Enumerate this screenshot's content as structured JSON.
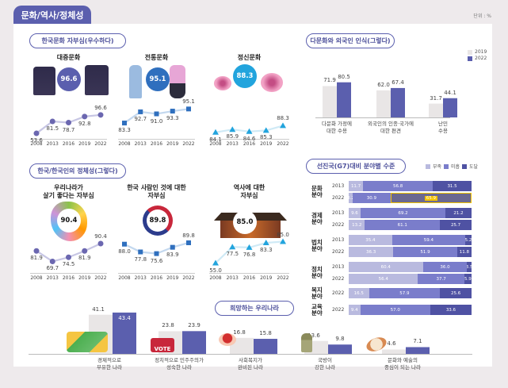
{
  "header": {
    "title": "문화/역사/정체성",
    "unit": "단위 : %"
  },
  "colors": {
    "accent": "#5b5fae",
    "light": "#e9e6e6",
    "mid": "#7a7dcb",
    "dark": "#4f52a3",
    "lack": "#b9badf",
    "highlight": "#f2c200"
  },
  "chart_data": [
    {
      "type": "line",
      "title": "한국문화 자부심(우수하다)",
      "x": [
        "2008",
        "2013",
        "2016",
        "2019",
        "2022"
      ],
      "series": [
        {
          "name": "대중문화",
          "values": [
            53.6,
            81.5,
            78.7,
            92.8,
            96.6
          ],
          "badge": "96.6"
        },
        {
          "name": "전통문화",
          "values": [
            83.3,
            92.7,
            91.0,
            93.3,
            95.1
          ],
          "badge": "95.1"
        },
        {
          "name": "정신문화",
          "values": [
            84.1,
            85.9,
            84.6,
            85.3,
            88.3
          ],
          "badge": "88.3"
        }
      ]
    },
    {
      "type": "bar",
      "title": "다문화와 외국인 인식(그렇다)",
      "categories": [
        "다문화 가정에\n대한 수용",
        "외국인의 인종·국가에\n대한 편견",
        "난민\n수용"
      ],
      "series": [
        {
          "name": "2019",
          "values": [
            71.9,
            62.0,
            31.7
          ]
        },
        {
          "name": "2022",
          "values": [
            80.5,
            67.4,
            44.1
          ]
        }
      ]
    },
    {
      "type": "line",
      "title": "한국/한국인의 정체성(그렇다)",
      "x": [
        "2008",
        "2013",
        "2016",
        "2019",
        "2022"
      ],
      "series": [
        {
          "name": "우리나라가\n살기 좋다는 자부심",
          "values": [
            81.9,
            69.7,
            74.5,
            81.9,
            90.4
          ],
          "badge": "90.4"
        },
        {
          "name": "한국 사람인 것에 대한\n자부심",
          "values": [
            88.0,
            77.8,
            75.6,
            83.9,
            89.8
          ],
          "badge": "89.8"
        },
        {
          "name": "역사에 대한\n자부심",
          "values": [
            55.0,
            77.5,
            76.8,
            83.3,
            85.0
          ],
          "badge": "85.0"
        }
      ]
    },
    {
      "type": "bar",
      "stacked": true,
      "title": "선진국(G7)대비 분야별 수준",
      "legend": [
        "부족",
        "미흡",
        "도달"
      ],
      "groups": [
        {
          "name": "문화\n분야",
          "rows": [
            {
              "year": "2013",
              "values": [
                11.7,
                56.8,
                31.5
              ]
            },
            {
              "year": "2022",
              "values": [
                3.2,
                30.9,
                65.9
              ],
              "highlight": 2
            }
          ]
        },
        {
          "name": "경제\n분야",
          "rows": [
            {
              "year": "2013",
              "values": [
                9.6,
                69.2,
                21.2
              ]
            },
            {
              "year": "2022",
              "values": [
                13.2,
                61.1,
                25.7
              ]
            }
          ]
        },
        {
          "name": "법치\n분야",
          "rows": [
            {
              "year": "2013",
              "values": [
                35.4,
                59.4,
                5.2
              ]
            },
            {
              "year": "2022",
              "values": [
                36.3,
                51.9,
                11.8
              ]
            }
          ]
        },
        {
          "name": "정치\n분야",
          "rows": [
            {
              "year": "2013",
              "values": [
                60.4,
                36.0,
                3.5
              ]
            },
            {
              "year": "2022",
              "values": [
                56.4,
                37.7,
                5.9
              ]
            }
          ]
        },
        {
          "name": "복지\n분야",
          "rows": [
            {
              "year": "2022",
              "values": [
                16.5,
                57.9,
                25.6
              ]
            }
          ]
        },
        {
          "name": "교육\n분야",
          "rows": [
            {
              "year": "2022",
              "values": [
                9.4,
                57.0,
                33.6
              ]
            }
          ]
        }
      ]
    },
    {
      "type": "bar",
      "title": "희망하는 우리나라",
      "categories": [
        "경제적으로\n부유한 나라",
        "정치적으로 민주주의가\n성숙한 나라",
        "사회복지가\n완비된 나라",
        "국방이\n강한 나라",
        "문화와 예술의\n중심이 되는 나라"
      ],
      "series": [
        {
          "name": "2019",
          "values": [
            41.1,
            23.8,
            16.8,
            13.6,
            4.6
          ]
        },
        {
          "name": "2022",
          "values": [
            43.4,
            23.9,
            15.8,
            9.8,
            7.1
          ]
        }
      ]
    }
  ],
  "illustrations": {
    "vote_label": "VOTE"
  }
}
